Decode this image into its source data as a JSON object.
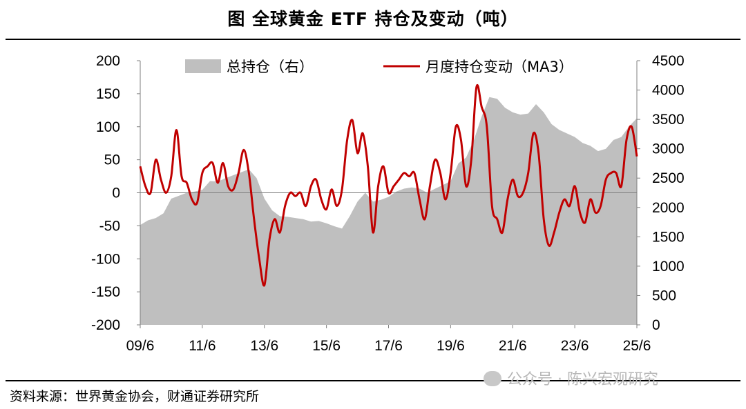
{
  "title": "图 全球黄金 ETF 持仓及变动（吨）",
  "source": "资料来源：世界黄金协会，财通证券研究所",
  "watermark": "公众号 · 陈兴宏观研究",
  "chart_data": {
    "type": "line",
    "title": "图 全球黄金 ETF 持仓及变动（吨）",
    "x_tick_labels": [
      "09/6",
      "11/6",
      "13/6",
      "15/6",
      "17/6",
      "19/6",
      "21/6",
      "23/6",
      "25/6"
    ],
    "y_left": {
      "range": [
        -200,
        200
      ],
      "ticks": [
        -200,
        -150,
        -100,
        -50,
        0,
        50,
        100,
        150,
        200
      ]
    },
    "y_right": {
      "range": [
        0,
        4500
      ],
      "ticks": [
        0,
        500,
        1000,
        1500,
        2000,
        2500,
        3000,
        3500,
        4000,
        4500
      ]
    },
    "grid": false,
    "legend_position": "top",
    "colors": {
      "area": "#bfbfbf",
      "line": "#c00000"
    },
    "series": [
      {
        "name": "总持仓（右）",
        "type": "area",
        "axis": "right",
        "points": [
          [
            "2009-06",
            1700
          ],
          [
            "2009-09",
            1780
          ],
          [
            "2009-12",
            1820
          ],
          [
            "2010-03",
            1900
          ],
          [
            "2010-06",
            2150
          ],
          [
            "2010-09",
            2200
          ],
          [
            "2010-12",
            2250
          ],
          [
            "2011-03",
            2270
          ],
          [
            "2011-06",
            2300
          ],
          [
            "2011-09",
            2450
          ],
          [
            "2011-12",
            2440
          ],
          [
            "2012-03",
            2500
          ],
          [
            "2012-06",
            2550
          ],
          [
            "2012-09",
            2600
          ],
          [
            "2012-12",
            2650
          ],
          [
            "2013-03",
            2500
          ],
          [
            "2013-06",
            2150
          ],
          [
            "2013-09",
            1950
          ],
          [
            "2013-12",
            1850
          ],
          [
            "2014-03",
            1840
          ],
          [
            "2014-06",
            1820
          ],
          [
            "2014-09",
            1800
          ],
          [
            "2014-12",
            1760
          ],
          [
            "2015-03",
            1770
          ],
          [
            "2015-06",
            1730
          ],
          [
            "2015-09",
            1680
          ],
          [
            "2015-12",
            1640
          ],
          [
            "2016-03",
            1850
          ],
          [
            "2016-06",
            2100
          ],
          [
            "2016-09",
            2250
          ],
          [
            "2016-12",
            2100
          ],
          [
            "2017-03",
            2130
          ],
          [
            "2017-06",
            2180
          ],
          [
            "2017-09",
            2270
          ],
          [
            "2017-12",
            2320
          ],
          [
            "2018-03",
            2340
          ],
          [
            "2018-06",
            2320
          ],
          [
            "2018-09",
            2250
          ],
          [
            "2018-12",
            2320
          ],
          [
            "2019-03",
            2380
          ],
          [
            "2019-06",
            2450
          ],
          [
            "2019-09",
            2750
          ],
          [
            "2019-12",
            2850
          ],
          [
            "2020-03",
            3150
          ],
          [
            "2020-06",
            3550
          ],
          [
            "2020-09",
            3880
          ],
          [
            "2020-12",
            3850
          ],
          [
            "2021-03",
            3700
          ],
          [
            "2021-06",
            3620
          ],
          [
            "2021-09",
            3580
          ],
          [
            "2021-12",
            3600
          ],
          [
            "2022-03",
            3760
          ],
          [
            "2022-06",
            3620
          ],
          [
            "2022-09",
            3420
          ],
          [
            "2022-12",
            3320
          ],
          [
            "2023-03",
            3260
          ],
          [
            "2023-06",
            3200
          ],
          [
            "2023-09",
            3100
          ],
          [
            "2023-12",
            3050
          ],
          [
            "2024-03",
            2960
          ],
          [
            "2024-06",
            3000
          ],
          [
            "2024-09",
            3150
          ],
          [
            "2024-12",
            3200
          ],
          [
            "2025-03",
            3380
          ],
          [
            "2025-06",
            3520
          ]
        ]
      },
      {
        "name": "月度持仓变动（MA3）",
        "type": "line",
        "axis": "left",
        "points": [
          [
            "2009-06",
            40
          ],
          [
            "2009-08",
            10
          ],
          [
            "2009-10",
            0
          ],
          [
            "2009-12",
            50
          ],
          [
            "2010-02",
            20
          ],
          [
            "2010-04",
            0
          ],
          [
            "2010-06",
            25
          ],
          [
            "2010-08",
            95
          ],
          [
            "2010-10",
            25
          ],
          [
            "2010-12",
            15
          ],
          [
            "2011-02",
            -10
          ],
          [
            "2011-04",
            -15
          ],
          [
            "2011-06",
            30
          ],
          [
            "2011-08",
            40
          ],
          [
            "2011-10",
            45
          ],
          [
            "2011-12",
            15
          ],
          [
            "2012-02",
            45
          ],
          [
            "2012-04",
            10
          ],
          [
            "2012-06",
            5
          ],
          [
            "2012-08",
            30
          ],
          [
            "2012-10",
            65
          ],
          [
            "2012-12",
            30
          ],
          [
            "2013-02",
            -40
          ],
          [
            "2013-04",
            -100
          ],
          [
            "2013-06",
            -140
          ],
          [
            "2013-08",
            -70
          ],
          [
            "2013-10",
            -40
          ],
          [
            "2013-12",
            -60
          ],
          [
            "2014-02",
            -20
          ],
          [
            "2014-04",
            0
          ],
          [
            "2014-06",
            -5
          ],
          [
            "2014-08",
            0
          ],
          [
            "2014-10",
            -20
          ],
          [
            "2014-12",
            10
          ],
          [
            "2015-02",
            20
          ],
          [
            "2015-04",
            -10
          ],
          [
            "2015-06",
            -25
          ],
          [
            "2015-08",
            5
          ],
          [
            "2015-10",
            -20
          ],
          [
            "2015-12",
            5
          ],
          [
            "2016-02",
            80
          ],
          [
            "2016-04",
            110
          ],
          [
            "2016-06",
            60
          ],
          [
            "2016-08",
            90
          ],
          [
            "2016-10",
            40
          ],
          [
            "2016-12",
            -60
          ],
          [
            "2017-02",
            10
          ],
          [
            "2017-04",
            40
          ],
          [
            "2017-06",
            0
          ],
          [
            "2017-08",
            10
          ],
          [
            "2017-10",
            20
          ],
          [
            "2017-12",
            30
          ],
          [
            "2018-02",
            25
          ],
          [
            "2018-04",
            30
          ],
          [
            "2018-06",
            -10
          ],
          [
            "2018-08",
            -40
          ],
          [
            "2018-10",
            10
          ],
          [
            "2018-12",
            50
          ],
          [
            "2019-02",
            30
          ],
          [
            "2019-04",
            -10
          ],
          [
            "2019-06",
            30
          ],
          [
            "2019-08",
            100
          ],
          [
            "2019-10",
            80
          ],
          [
            "2019-12",
            10
          ],
          [
            "2020-02",
            50
          ],
          [
            "2020-04",
            160
          ],
          [
            "2020-06",
            130
          ],
          [
            "2020-08",
            100
          ],
          [
            "2020-10",
            -20
          ],
          [
            "2020-12",
            -40
          ],
          [
            "2021-02",
            -60
          ],
          [
            "2021-04",
            -10
          ],
          [
            "2021-06",
            20
          ],
          [
            "2021-08",
            -5
          ],
          [
            "2021-10",
            0
          ],
          [
            "2021-12",
            30
          ],
          [
            "2022-02",
            90
          ],
          [
            "2022-04",
            60
          ],
          [
            "2022-06",
            -40
          ],
          [
            "2022-08",
            -80
          ],
          [
            "2022-10",
            -60
          ],
          [
            "2022-12",
            -30
          ],
          [
            "2023-02",
            -10
          ],
          [
            "2023-04",
            -20
          ],
          [
            "2023-06",
            10
          ],
          [
            "2023-08",
            -30
          ],
          [
            "2023-10",
            -45
          ],
          [
            "2023-12",
            -10
          ],
          [
            "2024-02",
            -30
          ],
          [
            "2024-04",
            -20
          ],
          [
            "2024-06",
            20
          ],
          [
            "2024-08",
            30
          ],
          [
            "2024-10",
            30
          ],
          [
            "2024-12",
            10
          ],
          [
            "2025-02",
            80
          ],
          [
            "2025-04",
            100
          ],
          [
            "2025-06",
            55
          ]
        ]
      }
    ]
  }
}
